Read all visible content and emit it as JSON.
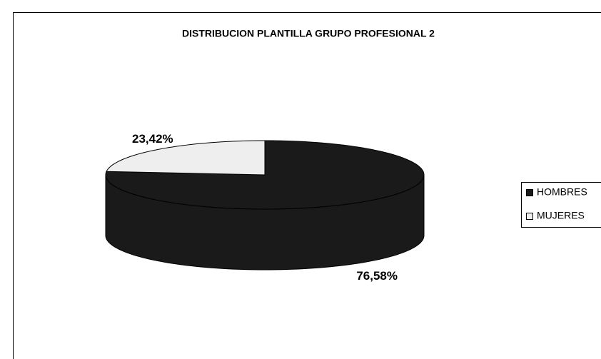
{
  "chart_data": {
    "type": "pie3d",
    "title": "DISTRIBUCION PLANTILLA GRUPO PROFESIONAL 2",
    "categories": [
      "HOMBRES",
      "MUJERES"
    ],
    "values": [
      76.58,
      23.42
    ],
    "value_labels": [
      "76,58%",
      "23,42%"
    ],
    "colors": [
      "#1a1a1a",
      "#eeeeee"
    ],
    "legend": "right"
  }
}
